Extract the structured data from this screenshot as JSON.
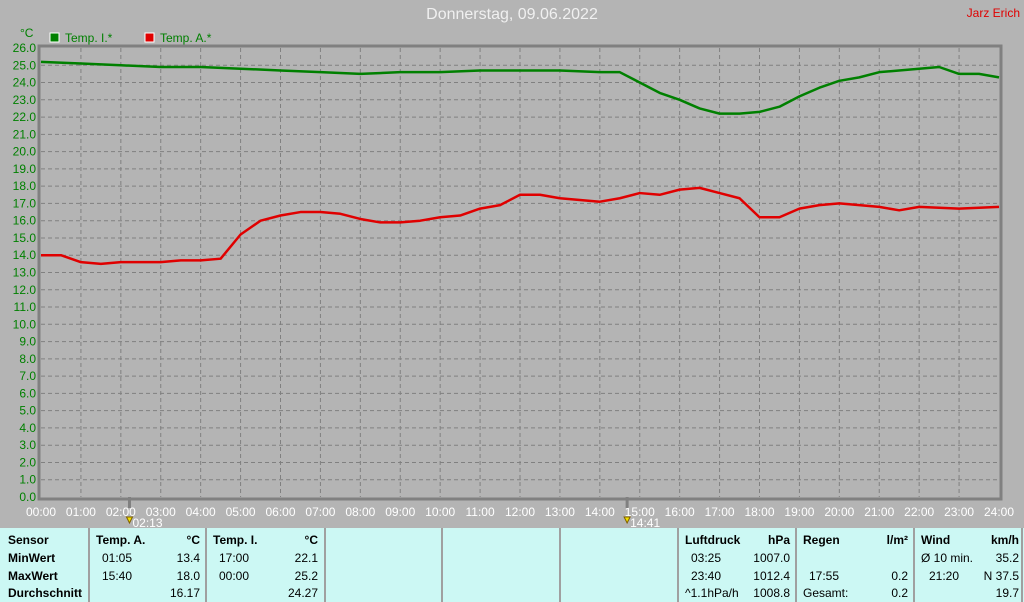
{
  "header": {
    "title": "Donnerstag, 09.06.2022",
    "author": "Jarz Erich"
  },
  "chart_data": {
    "type": "line",
    "ylabel": "°C",
    "ylim": [
      0,
      26
    ],
    "ytick_step": 1,
    "xlim": [
      "00:00",
      "24:00"
    ],
    "xticks": [
      "00:00",
      "01:00",
      "02:00",
      "03:00",
      "04:00",
      "05:00",
      "06:00",
      "07:00",
      "08:00",
      "09:00",
      "10:00",
      "11:00",
      "12:00",
      "13:00",
      "14:00",
      "15:00",
      "16:00",
      "17:00",
      "18:00",
      "19:00",
      "20:00",
      "21:00",
      "22:00",
      "23:00",
      "24:00"
    ],
    "grid": true,
    "legend": "top-left",
    "markers": [
      {
        "label": "02:13",
        "icon": "sunrise-icon",
        "x": "02:13"
      },
      {
        "label": "14:41",
        "icon": "sunset-icon",
        "x": "14:41"
      }
    ],
    "series": [
      {
        "name": "Temp. I.*",
        "color": "#008000",
        "x": [
          "00:00",
          "01:00",
          "02:00",
          "03:00",
          "04:00",
          "05:00",
          "06:00",
          "07:00",
          "08:00",
          "09:00",
          "10:00",
          "11:00",
          "12:00",
          "13:00",
          "14:00",
          "14:30",
          "15:00",
          "15:30",
          "16:00",
          "16:30",
          "17:00",
          "17:30",
          "18:00",
          "18:30",
          "19:00",
          "19:30",
          "20:00",
          "20:30",
          "21:00",
          "22:00",
          "22:30",
          "23:00",
          "23:30",
          "24:00"
        ],
        "values": [
          25.2,
          25.1,
          25.0,
          24.9,
          24.9,
          24.8,
          24.7,
          24.6,
          24.5,
          24.6,
          24.6,
          24.7,
          24.7,
          24.7,
          24.6,
          24.6,
          24.0,
          23.4,
          23.0,
          22.5,
          22.2,
          22.2,
          22.3,
          22.6,
          23.2,
          23.7,
          24.1,
          24.3,
          24.6,
          24.8,
          24.9,
          24.5,
          24.5,
          24.3
        ]
      },
      {
        "name": "Temp. A.*",
        "color": "#e00000",
        "x": [
          "00:00",
          "00:30",
          "01:00",
          "01:30",
          "02:00",
          "03:00",
          "03:30",
          "04:00",
          "04:30",
          "05:00",
          "05:30",
          "06:00",
          "06:30",
          "07:00",
          "07:30",
          "08:00",
          "08:30",
          "09:00",
          "09:30",
          "10:00",
          "10:30",
          "11:00",
          "11:30",
          "12:00",
          "12:30",
          "13:00",
          "13:30",
          "14:00",
          "14:30",
          "15:00",
          "15:30",
          "16:00",
          "16:30",
          "17:00",
          "17:30",
          "18:00",
          "18:30",
          "19:00",
          "19:30",
          "20:00",
          "20:30",
          "21:00",
          "21:30",
          "22:00",
          "23:00",
          "24:00"
        ],
        "values": [
          14.0,
          14.0,
          13.6,
          13.5,
          13.6,
          13.6,
          13.7,
          13.7,
          13.8,
          15.2,
          16.0,
          16.3,
          16.5,
          16.5,
          16.4,
          16.1,
          15.9,
          15.9,
          16.0,
          16.2,
          16.3,
          16.7,
          16.9,
          17.5,
          17.5,
          17.3,
          17.2,
          17.1,
          17.3,
          17.6,
          17.5,
          17.8,
          17.9,
          17.6,
          17.3,
          16.2,
          16.2,
          16.7,
          16.9,
          17.0,
          16.9,
          16.8,
          16.6,
          16.8,
          16.7,
          16.8
        ]
      }
    ]
  },
  "table": {
    "sensor": {
      "header": "Sensor",
      "rows": [
        "MinWert",
        "MaxWert",
        "Durchschnitt"
      ]
    },
    "temp_a": {
      "header": "Temp. A.",
      "unit": "°C",
      "min_time": "01:05",
      "min": "13.4",
      "max_time": "15:40",
      "max": "18.0",
      "avg": "16.17"
    },
    "temp_i": {
      "header": "Temp. I.",
      "unit": "°C",
      "min_time": "17:00",
      "min": "22.1",
      "max_time": "00:00",
      "max": "25.2",
      "avg": "24.27"
    },
    "pressure": {
      "header": "Luftdruck",
      "unit": "hPa",
      "min_time": "03:25",
      "min": "1007.0",
      "max_time": "23:40",
      "max": "1012.4",
      "trend": "^1.1hPa/h",
      "avg": "1008.8"
    },
    "rain": {
      "header": "Regen",
      "unit": "l/m²",
      "max_time": "17:55",
      "max": "0.2",
      "total_label": "Gesamt:",
      "total": "0.2"
    },
    "wind": {
      "header": "Wind",
      "unit": "km/h",
      "avg_label": "Ø 10 min.",
      "avg10": "35.2",
      "max_time": "21:20",
      "max": "N 37.5",
      "avg": "19.7"
    }
  }
}
